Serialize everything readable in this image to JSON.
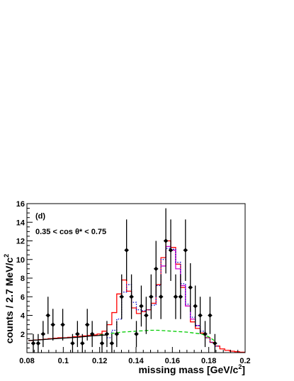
{
  "chart_data": {
    "type": "scatter",
    "panel_label": "(d)",
    "annotation": "0.35 < cos  θ* < 0.75",
    "xlabel": "missing mass [GeV/c",
    "xlabel_sup": "2",
    "xlabel_end": "]",
    "ylabel": "counts / 2.7 MeV/c",
    "ylabel_sup": "2",
    "xlim": [
      0.08,
      0.2
    ],
    "ylim": [
      0,
      16
    ],
    "x_ticks": [
      0.08,
      0.1,
      0.12,
      0.14,
      0.16,
      0.18,
      0.2
    ],
    "x_tick_labels": [
      "0.08",
      "0.1",
      "0.12",
      "0.14",
      "0.16",
      "0.18",
      "0.2"
    ],
    "y_ticks": [
      2,
      4,
      6,
      8,
      10,
      12,
      14,
      16
    ],
    "y_tick_labels": [
      "2",
      "4",
      "6",
      "8",
      "10",
      "12",
      "14",
      "16"
    ],
    "data_points": {
      "x": [
        0.0835,
        0.0862,
        0.0889,
        0.0916,
        0.0943,
        0.0997,
        0.1051,
        0.1078,
        0.1105,
        0.1132,
        0.1159,
        0.1213,
        0.124,
        0.1267,
        0.1294,
        0.1321,
        0.1348,
        0.1375,
        0.1402,
        0.1429,
        0.1456,
        0.1483,
        0.151,
        0.1537,
        0.1564,
        0.1591,
        0.1618,
        0.1645,
        0.1672,
        0.1699,
        0.1726,
        0.1753,
        0.178,
        0.1807,
        0.1834
      ],
      "y": [
        1,
        1,
        2,
        4,
        3,
        3,
        1,
        2,
        1,
        3,
        2,
        1,
        2,
        1,
        2,
        6,
        11,
        6,
        2,
        5,
        4,
        6,
        9,
        6,
        12,
        11,
        6,
        6,
        11,
        7,
        5,
        4,
        2,
        4,
        1
      ],
      "err": [
        1,
        1,
        1.4,
        2,
        1.7,
        1.7,
        1,
        1.4,
        1,
        1.7,
        1.4,
        1,
        1.4,
        1,
        1.4,
        2.4,
        3.3,
        2.4,
        1.4,
        2.2,
        2,
        2.4,
        3,
        2.4,
        3.5,
        3.3,
        2.4,
        2.4,
        3.3,
        2.6,
        2.2,
        2,
        1.4,
        2,
        1
      ]
    },
    "series": [
      {
        "color": "#ff0000",
        "style": "solid",
        "edges": [
          0.0808,
          0.0835,
          0.0862,
          0.0889,
          0.0916,
          0.0943,
          0.097,
          0.0997,
          0.1024,
          0.1051,
          0.1078,
          0.1105,
          0.1132,
          0.1159,
          0.1186,
          0.1213,
          0.124,
          0.1267,
          0.1294,
          0.1321,
          0.1348,
          0.1375,
          0.1402,
          0.1429,
          0.1456,
          0.1483,
          0.151,
          0.1537,
          0.1564,
          0.1591,
          0.1618,
          0.1645,
          0.1672,
          0.1699,
          0.1726,
          0.1753,
          0.178,
          0.1807,
          0.1834,
          0.1861,
          0.1888,
          0.1915,
          0.1942,
          0.1969,
          0.2
        ],
        "values": [
          1.3,
          1.35,
          1.4,
          1.45,
          1.5,
          1.55,
          1.6,
          1.6,
          1.65,
          1.7,
          1.75,
          1.8,
          1.85,
          1.9,
          2.0,
          2.3,
          3.0,
          4.3,
          6.3,
          7.8,
          6.6,
          4.8,
          4.2,
          4.4,
          4.6,
          5.3,
          7.3,
          10.2,
          12.0,
          11.3,
          9.5,
          7.0,
          5.0,
          3.3,
          2.6,
          2.1,
          1.6,
          1.1,
          0.7,
          0.4,
          0.25,
          0.15,
          0.1,
          0.05
        ]
      },
      {
        "color": "#cc00cc",
        "style": "solid",
        "edges": [
          0.1537,
          0.1564,
          0.1591,
          0.1618,
          0.1645,
          0.1672,
          0.1699,
          0.1726,
          0.1753
        ],
        "values": [
          9.3,
          11.4,
          11.0,
          9.0,
          7.2,
          5.0,
          3.6,
          2.9
        ]
      },
      {
        "color": "#0000cc",
        "style": "dotted",
        "edges": [
          0.124,
          0.1267,
          0.1294,
          0.1321,
          0.1348,
          0.1375,
          0.1402,
          0.1429,
          0.1456,
          0.1483,
          0.151,
          0.1537,
          0.1564,
          0.1591,
          0.1618,
          0.1645,
          0.1672,
          0.1699,
          0.1726,
          0.1753,
          0.178,
          0.1807,
          0.1834,
          0.1861
        ],
        "values": [
          1.6,
          2.4,
          3.6,
          6.5,
          7.3,
          5.4,
          4.6,
          4.5,
          4.6,
          5.1,
          7.2,
          10.0,
          11.2,
          11.1,
          9.7,
          7.4,
          5.2,
          3.8,
          2.9,
          2.3,
          1.6,
          1.1,
          0.7
        ]
      },
      {
        "color": "#00cc00",
        "style": "dashed",
        "x": [
          0.12,
          0.124,
          0.128,
          0.132,
          0.136,
          0.14,
          0.144,
          0.148,
          0.152,
          0.156,
          0.16,
          0.164,
          0.168,
          0.172,
          0.176,
          0.18,
          0.183
        ],
        "y": [
          1.9,
          2.0,
          2.1,
          2.2,
          2.25,
          2.3,
          2.35,
          2.4,
          2.4,
          2.35,
          2.3,
          2.25,
          2.2,
          2.1,
          2.0,
          1.7,
          1.3
        ]
      },
      {
        "color": "#000000",
        "style": "solid",
        "x": [
          0.0808,
          0.086,
          0.092,
          0.1,
          0.108,
          0.116,
          0.124
        ],
        "y": [
          1.3,
          1.35,
          1.45,
          1.55,
          1.65,
          1.8,
          1.9
        ]
      }
    ],
    "colors": {
      "frame": "#000000",
      "points": "#000000"
    }
  }
}
